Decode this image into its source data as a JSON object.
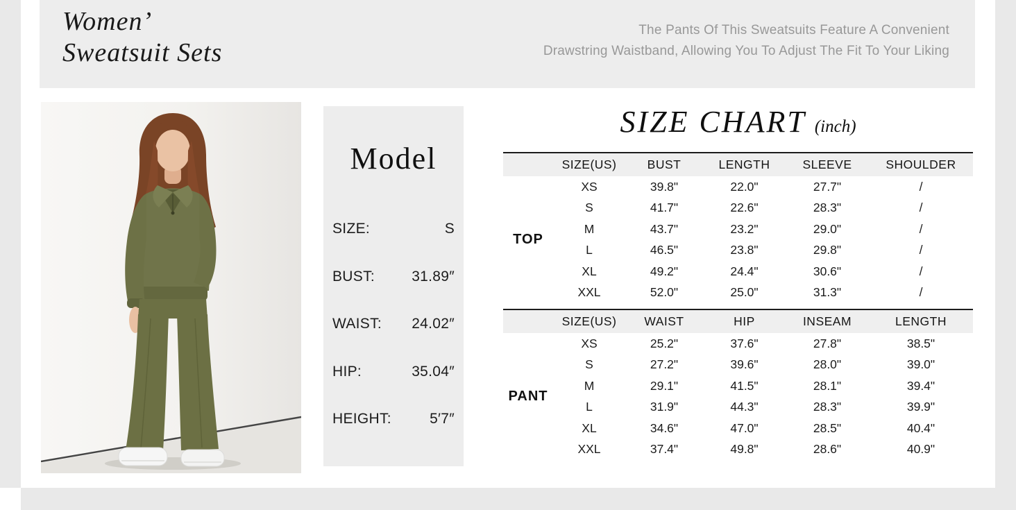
{
  "page": {
    "background": "#ffffff",
    "frame_color": "#e9e9e9"
  },
  "header": {
    "bg": "#ededed",
    "title_color": "#191919",
    "description_color": "#989898",
    "title_lines": [
      "Women’",
      "Sweatsuit Sets"
    ],
    "description_lines": [
      "The Pants Of This Sweatsuits Feature A Convenient",
      "Drawstring Waistband, Allowing You To Adjust The Fit To Your Liking"
    ]
  },
  "model_photo": {
    "outfit_color": "#6c7044",
    "hair_color": "#7a4426",
    "skin_color": "#eac2a4",
    "wall_color": "#f6f5f3",
    "floor_color": "#e6e4e0",
    "shoe_color": "#f6f6f6"
  },
  "model_panel": {
    "bg": "#ededed",
    "title": "Model",
    "specs": [
      {
        "label": "SIZE:",
        "value": "S"
      },
      {
        "label": "BUST:",
        "value": "31.89″"
      },
      {
        "label": "WAIST:",
        "value": "24.02″"
      },
      {
        "label": "HIP:",
        "value": "35.04″"
      },
      {
        "label": "HEIGHT:",
        "value": "5′7″"
      }
    ]
  },
  "size_chart": {
    "title": "SIZE CHART",
    "unit": "(inch)",
    "header_bg": "#efefef",
    "rule_color": "#1c1c1c",
    "sections": [
      {
        "group": "TOP",
        "columns": [
          "SIZE(US)",
          "BUST",
          "LENGTH",
          "SLEEVE",
          "SHOULDER"
        ],
        "rows": [
          [
            "XS",
            "39.8\"",
            "22.0\"",
            "27.7\"",
            "/"
          ],
          [
            "S",
            "41.7\"",
            "22.6\"",
            "28.3\"",
            "/"
          ],
          [
            "M",
            "43.7\"",
            "23.2\"",
            "29.0\"",
            "/"
          ],
          [
            "L",
            "46.5\"",
            "23.8\"",
            "29.8\"",
            "/"
          ],
          [
            "XL",
            "49.2\"",
            "24.4\"",
            "30.6\"",
            "/"
          ],
          [
            "XXL",
            "52.0\"",
            "25.0\"",
            "31.3\"",
            "/"
          ]
        ]
      },
      {
        "group": "PANT",
        "columns": [
          "SIZE(US)",
          "WAIST",
          "HIP",
          "INSEAM",
          "LENGTH"
        ],
        "rows": [
          [
            "XS",
            "25.2\"",
            "37.6\"",
            "27.8\"",
            "38.5\""
          ],
          [
            "S",
            "27.2\"",
            "39.6\"",
            "28.0\"",
            "39.0\""
          ],
          [
            "M",
            "29.1\"",
            "41.5\"",
            "28.1\"",
            "39.4\""
          ],
          [
            "L",
            "31.9\"",
            "44.3\"",
            "28.3\"",
            "39.9\""
          ],
          [
            "XL",
            "34.6\"",
            "47.0\"",
            "28.5\"",
            "40.4\""
          ],
          [
            "XXL",
            "37.4\"",
            "49.8\"",
            "28.6\"",
            "40.9\""
          ]
        ]
      }
    ]
  }
}
